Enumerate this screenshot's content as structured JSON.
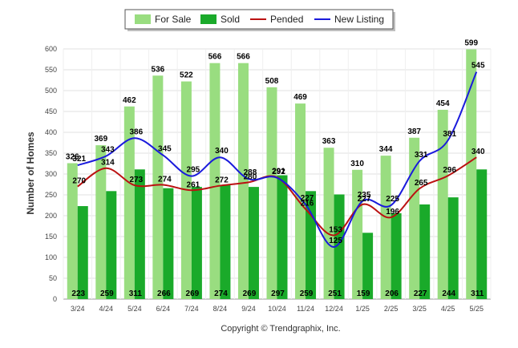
{
  "chart_data": {
    "type": "bar",
    "categories": [
      "3/24",
      "4/24",
      "5/24",
      "6/24",
      "7/24",
      "8/24",
      "9/24",
      "10/24",
      "11/24",
      "12/24",
      "1/25",
      "2/25",
      "3/25",
      "4/25",
      "5/25"
    ],
    "series": [
      {
        "name": "For Sale",
        "kind": "bar",
        "color": "#99dd80",
        "values": [
          326,
          369,
          462,
          536,
          522,
          566,
          566,
          508,
          469,
          363,
          310,
          344,
          387,
          454,
          599
        ]
      },
      {
        "name": "Sold",
        "kind": "bar",
        "color": "#1aaa2a",
        "values": [
          223,
          259,
          311,
          266,
          269,
          274,
          269,
          297,
          259,
          251,
          159,
          206,
          227,
          244,
          311
        ]
      },
      {
        "name": "Pended",
        "kind": "line",
        "color": "#bb1111",
        "values": [
          270,
          314,
          273,
          274,
          261,
          272,
          280,
          292,
          216,
          153,
          227,
          196,
          265,
          296,
          340
        ]
      },
      {
        "name": "New Listing",
        "kind": "line",
        "color": "#1a1adc",
        "values": [
          321,
          343,
          386,
          345,
          295,
          340,
          288,
          291,
          227,
          125,
          235,
          225,
          331,
          381,
          545
        ]
      }
    ],
    "ylabel": "Number of Homes",
    "ylim": [
      0,
      600
    ],
    "yticks": [
      0,
      50,
      100,
      150,
      200,
      250,
      300,
      350,
      400,
      450,
      500,
      550,
      600
    ],
    "grid": true,
    "legend_position": "top-center",
    "footer": "Copyright © Trendgraphix, Inc."
  }
}
